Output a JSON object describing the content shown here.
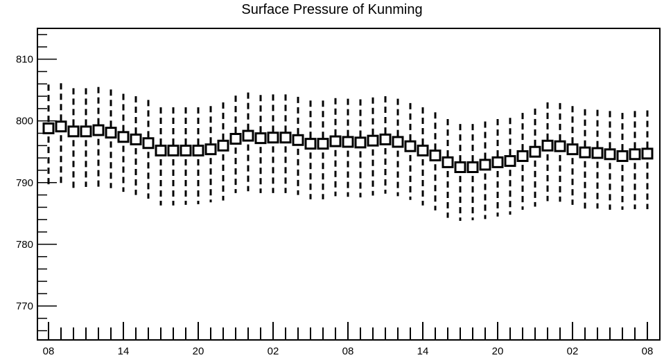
{
  "chart_data": {
    "type": "boxplot",
    "title": "Surface Pressure of Kunming",
    "xlabel": "",
    "ylabel": "",
    "ylim": [
      764.5,
      815
    ],
    "x_tick_labels": [
      "08",
      "14",
      "20",
      "02",
      "08",
      "14",
      "20",
      "02",
      "08"
    ],
    "y_tick_labels": [
      "770",
      "780",
      "790",
      "800",
      "810"
    ],
    "y_tick_values": [
      770,
      780,
      790,
      800,
      810
    ],
    "grid": false,
    "series": [
      {
        "mean": [
          798.8,
          799.1,
          798.3,
          798.3,
          798.5,
          798.1,
          797.4,
          797.0,
          796.4,
          795.2,
          795.2,
          795.2,
          795.2,
          795.4,
          796.0,
          797.1,
          797.6,
          797.2,
          797.3,
          797.3,
          796.9,
          796.3,
          796.3,
          796.7,
          796.6,
          796.5,
          796.8,
          797.0,
          796.6,
          795.9,
          795.2,
          794.4,
          793.3,
          792.5,
          792.5,
          792.9,
          793.3,
          793.5,
          794.3,
          795.0,
          796.0,
          795.9,
          795.4,
          794.9,
          794.8,
          794.6,
          794.3,
          794.6,
          794.7
        ],
        "lower": [
          789.7,
          789.9,
          789.1,
          789.3,
          789.3,
          789.1,
          788.5,
          788.0,
          787.4,
          786.3,
          786.3,
          786.4,
          786.5,
          786.8,
          787.1,
          788.3,
          788.6,
          788.3,
          788.3,
          788.3,
          788.0,
          787.3,
          787.3,
          787.8,
          787.7,
          787.6,
          787.9,
          788.2,
          787.8,
          787.2,
          786.3,
          785.5,
          784.3,
          783.8,
          783.9,
          784.1,
          784.5,
          784.8,
          785.6,
          786.1,
          787.0,
          786.9,
          786.4,
          785.8,
          785.8,
          785.6,
          785.6,
          785.7,
          785.7
        ],
        "upper": [
          805.9,
          806.1,
          805.3,
          805.3,
          805.5,
          805.1,
          804.4,
          804.0,
          803.4,
          802.2,
          802.2,
          802.2,
          802.2,
          802.4,
          803.0,
          804.1,
          804.6,
          804.2,
          804.3,
          804.3,
          803.9,
          803.3,
          803.3,
          803.7,
          803.6,
          803.5,
          803.8,
          804.0,
          803.6,
          802.9,
          802.2,
          801.4,
          800.3,
          799.5,
          799.5,
          799.9,
          800.3,
          800.5,
          801.3,
          802.0,
          803.0,
          802.9,
          802.4,
          801.9,
          801.8,
          801.6,
          801.3,
          801.6,
          801.7
        ]
      }
    ]
  }
}
